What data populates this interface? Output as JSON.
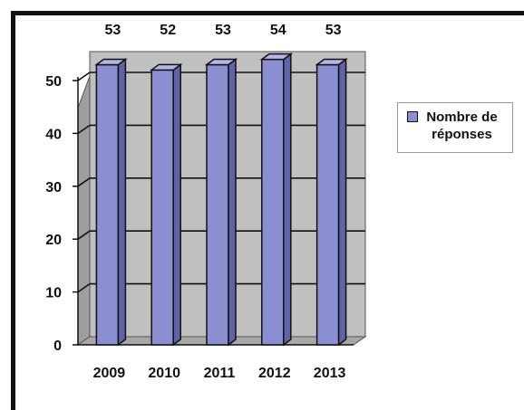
{
  "colors": {
    "bar_front": "#8b8fd2",
    "bar_side": "#5f63a8",
    "bar_top": "#b3b6e6",
    "wall": "#c0c0c0",
    "floor": "#a8a8a8",
    "frame": "#111111"
  },
  "chart_data": {
    "type": "bar",
    "style": "3d-column",
    "categories": [
      "2009",
      "2010",
      "2011",
      "2012",
      "2013"
    ],
    "series": [
      {
        "name": "Nombre de réponses",
        "values": [
          53,
          52,
          53,
          54,
          53
        ]
      }
    ],
    "data_labels": [
      "53",
      "52",
      "53",
      "54",
      "53"
    ],
    "title": "",
    "xlabel": "",
    "ylabel": "",
    "ylim": [
      0,
      50
    ],
    "yticks": [
      0,
      10,
      20,
      30,
      40,
      50
    ],
    "grid": true,
    "legend_position": "right"
  }
}
